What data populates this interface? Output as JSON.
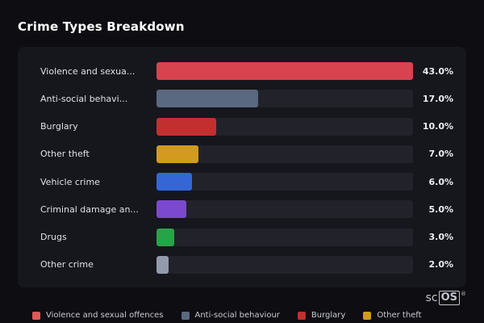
{
  "title": "Crime Types Breakdown",
  "chart_data": {
    "type": "bar",
    "orientation": "horizontal",
    "max_value": 43.0,
    "categories": [
      "Violence and sexua...",
      "Anti-social behavi...",
      "Burglary",
      "Other theft",
      "Vehicle crime",
      "Criminal damage an...",
      "Drugs",
      "Other crime"
    ],
    "values": [
      43.0,
      17.0,
      10.0,
      7.0,
      6.0,
      5.0,
      3.0,
      2.0
    ],
    "value_labels": [
      "43.0%",
      "17.0%",
      "10.0%",
      "7.0%",
      "6.0%",
      "5.0%",
      "3.0%",
      "2.0%"
    ],
    "colors": [
      "#d7434e",
      "#5a6880",
      "#c22f2f",
      "#d29b1f",
      "#3566d6",
      "#7a49cf",
      "#27a348",
      "#939aab"
    ],
    "track_color": "#22222b",
    "background": "#16161d"
  },
  "legend": [
    {
      "label": "Violence and sexual offences",
      "color": "#e05858"
    },
    {
      "label": "Anti-social behaviour",
      "color": "#5a6880"
    },
    {
      "label": "Burglary",
      "color": "#c22f2f"
    },
    {
      "label": "Other theft",
      "color": "#d29b1f"
    }
  ],
  "logo": {
    "prefix": "sc",
    "box": "OS",
    "reg": "®"
  }
}
